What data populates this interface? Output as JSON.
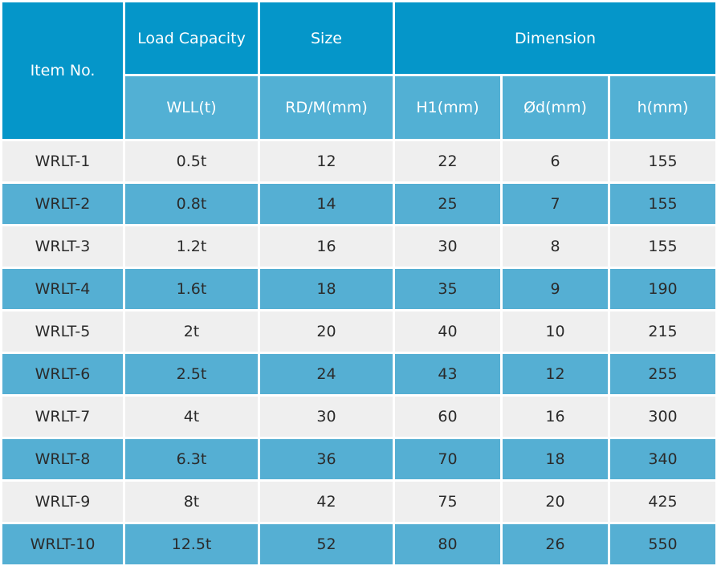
{
  "headers": {
    "item_no": "Item No.",
    "load_capacity": "Load Capacity",
    "size": "Size",
    "dimension": "Dimension",
    "wll": "WLL(t)",
    "rdm": "RD/M(mm)",
    "h1": "H1(mm)",
    "od": "Ød(mm)",
    "h": "h(mm)"
  },
  "rows": [
    {
      "item": "WRLT-1",
      "wll": "0.5t",
      "rdm": "12",
      "h1": "22",
      "od": "6",
      "h": "155"
    },
    {
      "item": "WRLT-2",
      "wll": "0.8t",
      "rdm": "14",
      "h1": "25",
      "od": "7",
      "h": "155"
    },
    {
      "item": "WRLT-3",
      "wll": "1.2t",
      "rdm": "16",
      "h1": "30",
      "od": "8",
      "h": "155"
    },
    {
      "item": "WRLT-4",
      "wll": "1.6t",
      "rdm": "18",
      "h1": "35",
      "od": "9",
      "h": "190"
    },
    {
      "item": "WRLT-5",
      "wll": "2t",
      "rdm": "20",
      "h1": "40",
      "od": "10",
      "h": "215"
    },
    {
      "item": "WRLT-6",
      "wll": "2.5t",
      "rdm": "24",
      "h1": "43",
      "od": "12",
      "h": "255"
    },
    {
      "item": "WRLT-7",
      "wll": "4t",
      "rdm": "30",
      "h1": "60",
      "od": "16",
      "h": "300"
    },
    {
      "item": "WRLT-8",
      "wll": "6.3t",
      "rdm": "36",
      "h1": "70",
      "od": "18",
      "h": "340"
    },
    {
      "item": "WRLT-9",
      "wll": "8t",
      "rdm": "42",
      "h1": "75",
      "od": "20",
      "h": "425"
    },
    {
      "item": "WRLT-10",
      "wll": "12.5t",
      "rdm": "52",
      "h1": "80",
      "od": "26",
      "h": "550"
    }
  ],
  "colors": {
    "header_dark": "#0596c9",
    "header_light": "#52b0d4",
    "row_light": "#efefef",
    "row_blue": "#55afd3"
  }
}
